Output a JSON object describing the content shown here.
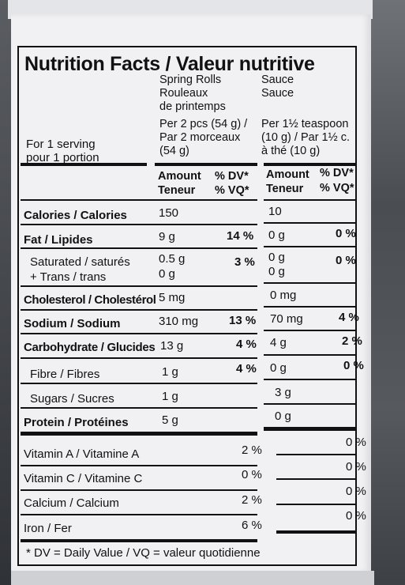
{
  "title": "Nutrition Facts / Valeur nutritive",
  "columns": {
    "spring_rolls": {
      "name_en": "Spring Rolls",
      "name_fr": "Rouleaux",
      "name_fr2": "de printemps",
      "serving1": "Per 2 pcs (54 g) /",
      "serving2": "Par 2 morceaux",
      "serving3": "(54 g)"
    },
    "sauce": {
      "name_en": "Sauce",
      "name_fr": "Sauce",
      "serving1": "Per 1½ teaspoon",
      "serving2": "(10 g) / Par 1½ c.",
      "serving3": "à thé (10 g)"
    }
  },
  "serving_label": {
    "en": "For 1 serving",
    "fr": "pour 1 portion"
  },
  "amount_header": {
    "amount": "Amount",
    "teneur": "Teneur",
    "dv": "% DV*",
    "vq": "% VQ*"
  },
  "rows": {
    "calories": {
      "label": "Calories / Calories",
      "sr": "150",
      "sr_dv": "",
      "sa": "10",
      "sa_dv": ""
    },
    "fat": {
      "label": "Fat / Lipides",
      "sr": "9 g",
      "sr_dv": "14 %",
      "sa": "0 g",
      "sa_dv": "0 %"
    },
    "saturated": {
      "label": "Saturated / saturés",
      "label2": "+ Trans / trans",
      "sr": "0.5 g",
      "sr2": "0 g",
      "sr_dv": "3 %",
      "sa": "0 g",
      "sa2": "0 g",
      "sa_dv": "0 %"
    },
    "cholesterol": {
      "label": "Cholesterol / Cholestérol",
      "sr": "5 mg",
      "sa": "0 mg"
    },
    "sodium": {
      "label": "Sodium / Sodium",
      "sr": "310 mg",
      "sr_dv": "13 %",
      "sa": "70 mg",
      "sa_dv": "4 %"
    },
    "carbohydrate": {
      "label": "Carbohydrate / Glucides",
      "sr": "13 g",
      "sr_dv": "4 %",
      "sa": "4 g",
      "sa_dv": "2 %"
    },
    "fibre": {
      "label": "Fibre / Fibres",
      "sr": "1 g",
      "sr_dv": "4 %",
      "sa": "0 g",
      "sa_dv": "0 %"
    },
    "sugars": {
      "label": "Sugars / Sucres",
      "sr": "1 g",
      "sa": "3 g"
    },
    "protein": {
      "label": "Protein / Protéines",
      "sr": "5 g",
      "sa": "0 g"
    },
    "vitamin_a": {
      "label": "Vitamin A / Vitamine A",
      "sr_dv": "2 %",
      "sa_dv": "0 %"
    },
    "vitamin_c": {
      "label": "Vitamin C / Vitamine C",
      "sr_dv": "0 %",
      "sa_dv": "0 %"
    },
    "calcium": {
      "label": "Calcium / Calcium",
      "sr_dv": "2 %",
      "sa_dv": "0 %"
    },
    "iron": {
      "label": "Iron / Fer",
      "sr_dv": "6 %",
      "sa_dv": "0 %"
    }
  },
  "footnote": "* DV = Daily Value / VQ = valeur quotidienne"
}
